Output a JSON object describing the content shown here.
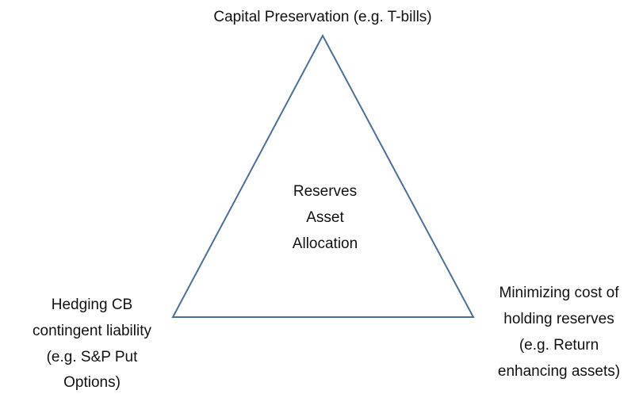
{
  "nodes": [
    {
      "lines": [
        "Capital Preservation (e.g. T-bills)"
      ]
    },
    {
      "lines": [
        "Reserves",
        "Asset",
        "Allocation"
      ]
    },
    {
      "lines": [
        "Hedging CB",
        "contingent liability",
        "(e.g. S&P Put",
        "Options)"
      ]
    },
    {
      "lines": [
        "Minimizing cost of",
        "holding reserves",
        "(e.g. Return",
        "enhancing assets)"
      ]
    }
  ]
}
